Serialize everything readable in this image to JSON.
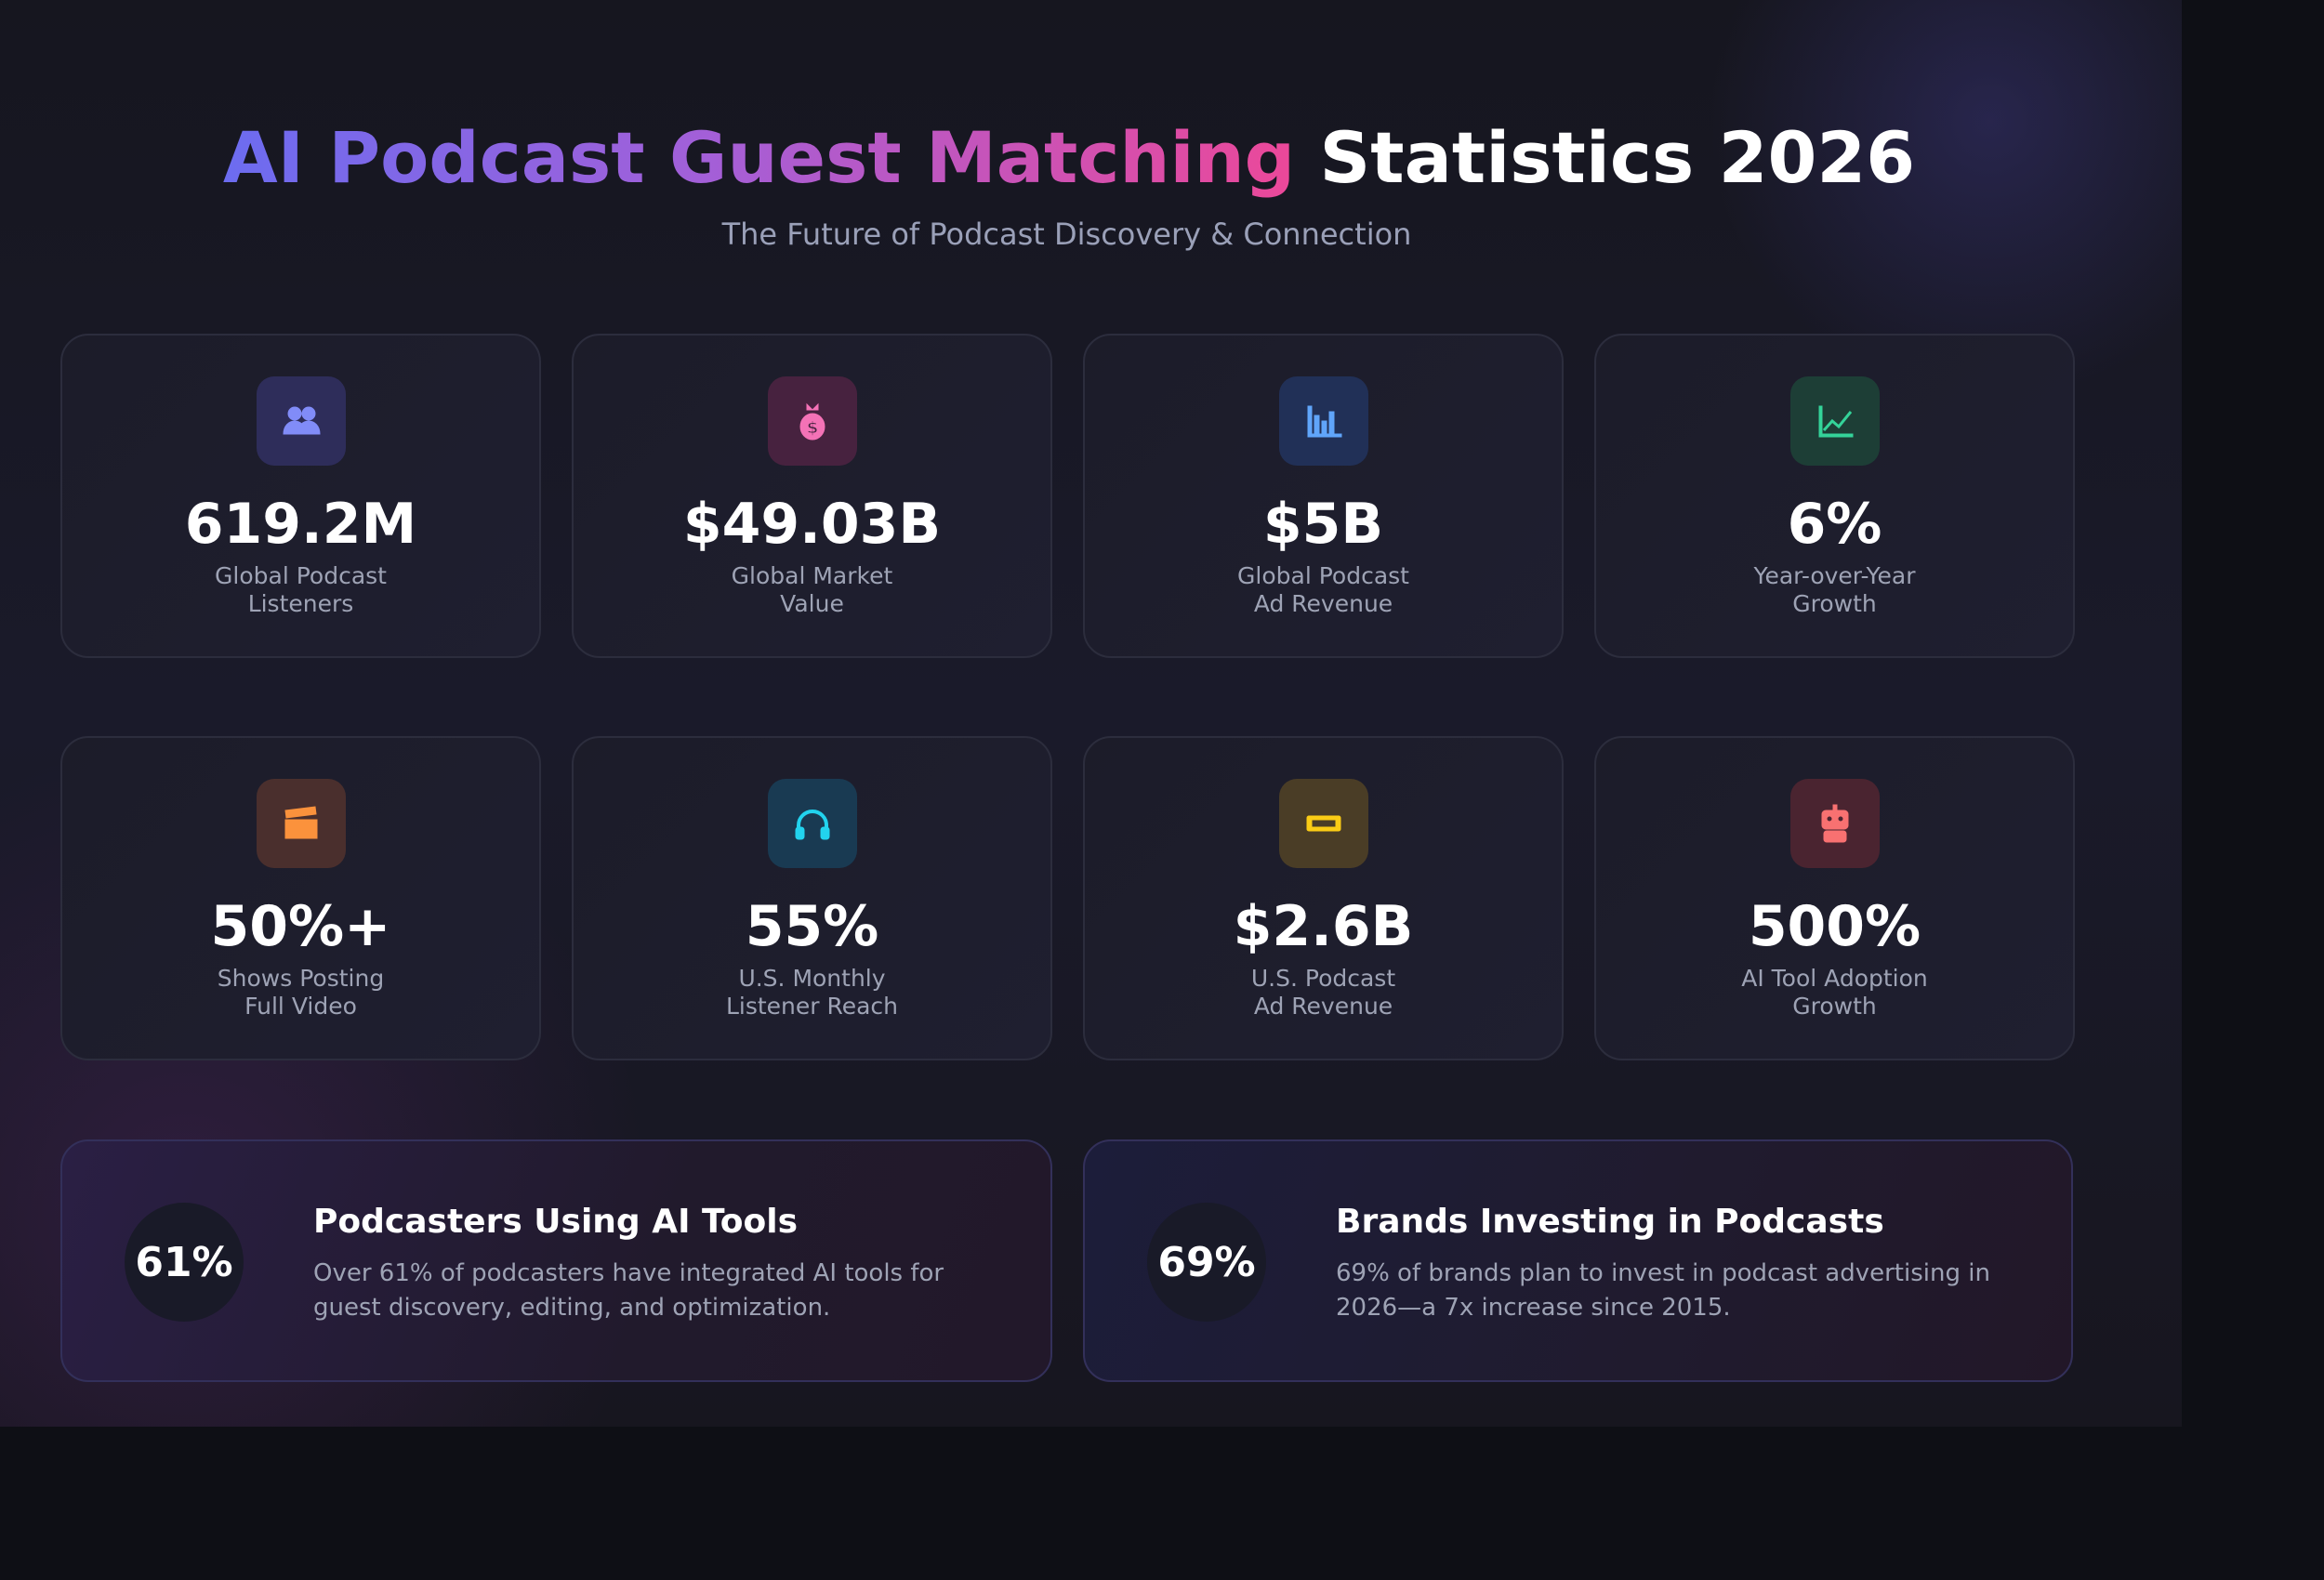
{
  "header": {
    "title_gradient": "AI Podcast Guest Matching",
    "title_plain": "Statistics 2026",
    "subtitle": "The Future of Podcast Discovery & Connection"
  },
  "stats": [
    {
      "icon": "users-icon",
      "value": "619.2M",
      "label1": "Global Podcast",
      "label2": "Listeners",
      "bg": "#2e2d5a",
      "fg": "#818cf8"
    },
    {
      "icon": "money-bag-icon",
      "value": "$49.03B",
      "label1": "Global Market",
      "label2": "Value",
      "bg": "#47223f",
      "fg": "#f472b6"
    },
    {
      "icon": "bar-chart-icon",
      "value": "$5B",
      "label1": "Global Podcast",
      "label2": "Ad Revenue",
      "bg": "#213057",
      "fg": "#60a5fa"
    },
    {
      "icon": "trend-chart-icon",
      "value": "6%",
      "label1": "Year-over-Year",
      "label2": "Growth",
      "bg": "#1d3e36",
      "fg": "#34d399"
    },
    {
      "icon": "clapperboard-icon",
      "value": "50%+",
      "label1": "Shows Posting",
      "label2": "Full Video",
      "bg": "#4a2f2d",
      "fg": "#fb923c"
    },
    {
      "icon": "headphones-icon",
      "value": "55%",
      "label1": "U.S. Monthly",
      "label2": "Listener Reach",
      "bg": "#193a52",
      "fg": "#22d3ee"
    },
    {
      "icon": "ticket-icon",
      "value": "$2.6B",
      "label1": "U.S. Podcast",
      "label2": "Ad Revenue",
      "bg": "#4a3d26",
      "fg": "#facc15"
    },
    {
      "icon": "robot-icon",
      "value": "500%",
      "label1": "AI Tool Adoption",
      "label2": "Growth",
      "bg": "#4a2430",
      "fg": "#f87171"
    }
  ],
  "highlights": [
    {
      "percent": "61%",
      "title": "Podcasters Using AI Tools",
      "desc": "Over 61% of podcasters have integrated AI tools for guest discovery, editing, and optimization."
    },
    {
      "percent": "69%",
      "title": "Brands Investing in Podcasts",
      "desc": "69% of brands plan to invest in podcast advertising in 2026—a 7x increase since 2015."
    }
  ]
}
